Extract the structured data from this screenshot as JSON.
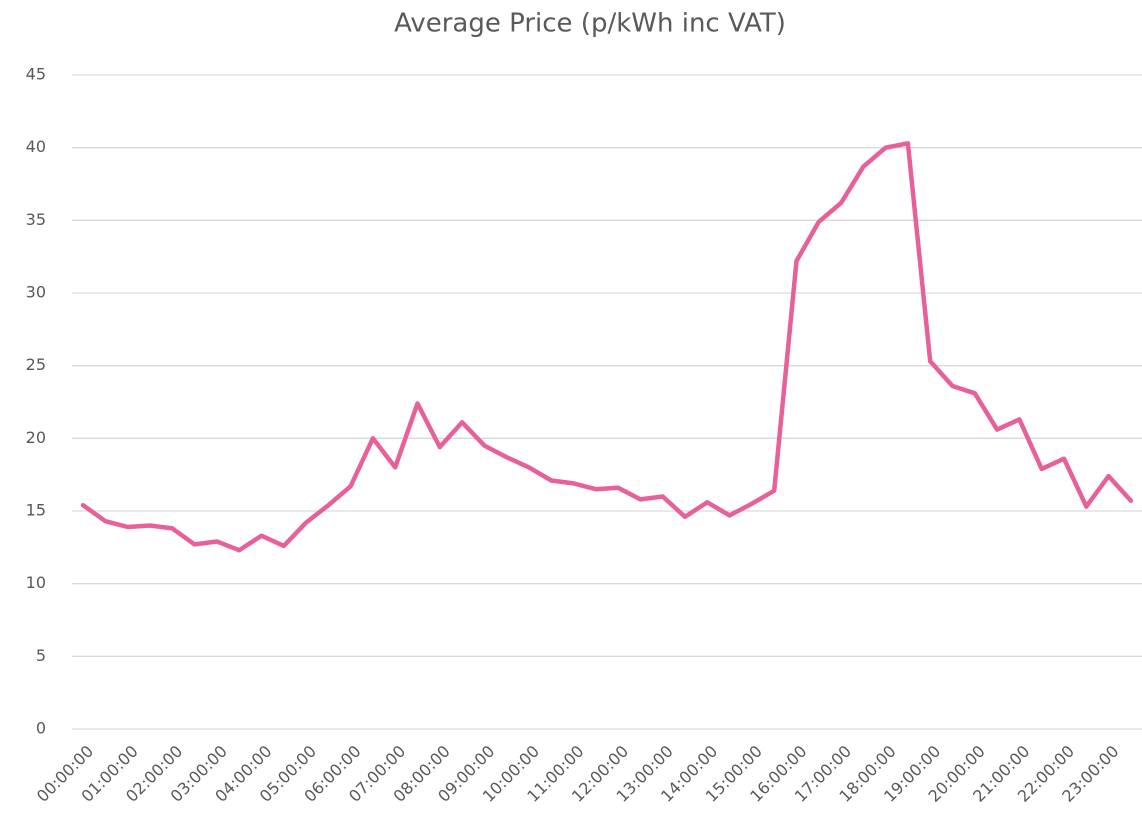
{
  "chart_data": {
    "type": "line",
    "title": "Average Price (p/kWh inc VAT)",
    "categories": [
      "00:00:00",
      null,
      "01:00:00",
      null,
      "02:00:00",
      null,
      "03:00:00",
      null,
      "04:00:00",
      null,
      "05:00:00",
      null,
      "06:00:00",
      null,
      "07:00:00",
      null,
      "08:00:00",
      null,
      "09:00:00",
      null,
      "10:00:00",
      null,
      "11:00:00",
      null,
      "12:00:00",
      null,
      "13:00:00",
      null,
      "14:00:00",
      null,
      "15:00:00",
      null,
      "16:00:00",
      null,
      "17:00:00",
      null,
      "18:00:00",
      null,
      "19:00:00",
      null,
      "20:00:00",
      null,
      "21:00:00",
      null,
      "22:00:00",
      null,
      "23:00:00",
      null
    ],
    "values": [
      15.4,
      14.3,
      13.9,
      14.0,
      13.8,
      12.7,
      12.9,
      12.3,
      13.3,
      12.6,
      14.2,
      15.4,
      16.7,
      20.0,
      18.0,
      22.4,
      19.4,
      21.1,
      19.5,
      18.7,
      18.0,
      17.1,
      16.9,
      16.5,
      16.6,
      15.8,
      16.0,
      14.6,
      15.6,
      14.7,
      15.5,
      16.4,
      32.2,
      34.9,
      36.2,
      38.7,
      40.0,
      40.3,
      25.3,
      23.6,
      23.1,
      20.6,
      21.3,
      17.9,
      18.6,
      15.3,
      17.4,
      15.7
    ],
    "color": "#e8609a",
    "ylim": [
      0,
      45
    ],
    "yticks": [
      0,
      5,
      10,
      15,
      20,
      25,
      30,
      35,
      40,
      45
    ],
    "grid": true
  }
}
